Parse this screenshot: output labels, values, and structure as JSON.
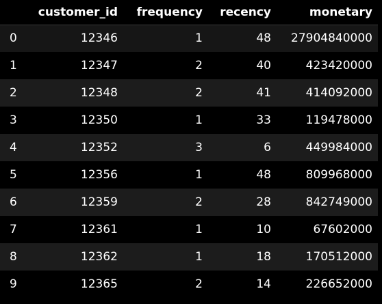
{
  "table": {
    "columns": [
      "",
      "customer_id",
      "frequency",
      "recency",
      "monetary"
    ],
    "rows": [
      {
        "index": "0",
        "customer_id": "12346",
        "frequency": "1",
        "recency": "48",
        "monetary": "27904840000"
      },
      {
        "index": "1",
        "customer_id": "12347",
        "frequency": "2",
        "recency": "40",
        "monetary": "423420000"
      },
      {
        "index": "2",
        "customer_id": "12348",
        "frequency": "2",
        "recency": "41",
        "monetary": "414092000"
      },
      {
        "index": "3",
        "customer_id": "12350",
        "frequency": "1",
        "recency": "33",
        "monetary": "119478000"
      },
      {
        "index": "4",
        "customer_id": "12352",
        "frequency": "3",
        "recency": "6",
        "monetary": "449984000"
      },
      {
        "index": "5",
        "customer_id": "12356",
        "frequency": "1",
        "recency": "48",
        "monetary": "809968000"
      },
      {
        "index": "6",
        "customer_id": "12359",
        "frequency": "2",
        "recency": "28",
        "monetary": "842749000"
      },
      {
        "index": "7",
        "customer_id": "12361",
        "frequency": "1",
        "recency": "10",
        "monetary": "67602000"
      },
      {
        "index": "8",
        "customer_id": "12362",
        "frequency": "1",
        "recency": "18",
        "monetary": "170512000"
      },
      {
        "index": "9",
        "customer_id": "12365",
        "frequency": "2",
        "recency": "14",
        "monetary": "226652000"
      }
    ]
  },
  "colors": {
    "background": "#000000",
    "row_alt": "#1c1c1c",
    "text": "#ffffff"
  }
}
